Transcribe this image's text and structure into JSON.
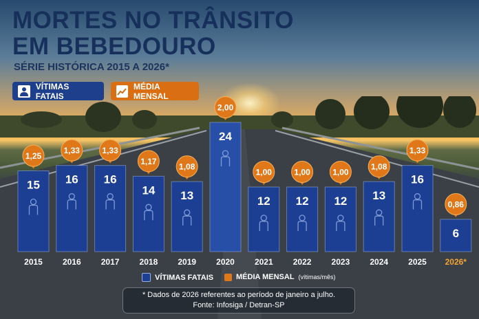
{
  "header": {
    "title_line1": "MORTES NO TRÂNSITO",
    "title_line2": "EM BEBEDOURO",
    "subtitle": "SÉRIE HISTÓRICA 2015 A 2026*"
  },
  "chips": {
    "fatal_label": "VÍTIMAS FATAIS",
    "media_label": "MÉDIA MENSAL"
  },
  "legend": {
    "fatal_label": "VÍTIMAS FATAIS",
    "media_label": "MÉDIA MENSAL",
    "media_unit": "(vítimas/mês)"
  },
  "footnote": {
    "line1": "* Dados de 2026 referentes ao período de janeiro a julho.",
    "line2": "Fonte: Infosiga / Detran-SP"
  },
  "colors": {
    "bar": "#1c3f93",
    "bar_highlight": "#284fa8",
    "media": "#e0781a",
    "title": "#16305b",
    "year_highlight": "#f2a531"
  },
  "chart_data": {
    "type": "bar",
    "categories": [
      "2015",
      "2016",
      "2017",
      "2018",
      "2019",
      "2020",
      "2021",
      "2022",
      "2023",
      "2024",
      "2025",
      "2026*"
    ],
    "series": [
      {
        "name": "VÍTIMAS FATAIS",
        "values": [
          15,
          16,
          16,
          14,
          13,
          24,
          12,
          12,
          12,
          13,
          16,
          6
        ]
      },
      {
        "name": "MÉDIA MENSAL",
        "values": [
          "1,25",
          "1,33",
          "1,33",
          "1,17",
          "1,08",
          "2,00",
          "1,00",
          "1,00",
          "1,00",
          "1,08",
          "1,33",
          "0,86"
        ]
      }
    ],
    "ylim": [
      0,
      24
    ],
    "highlight_category": "2026*"
  }
}
